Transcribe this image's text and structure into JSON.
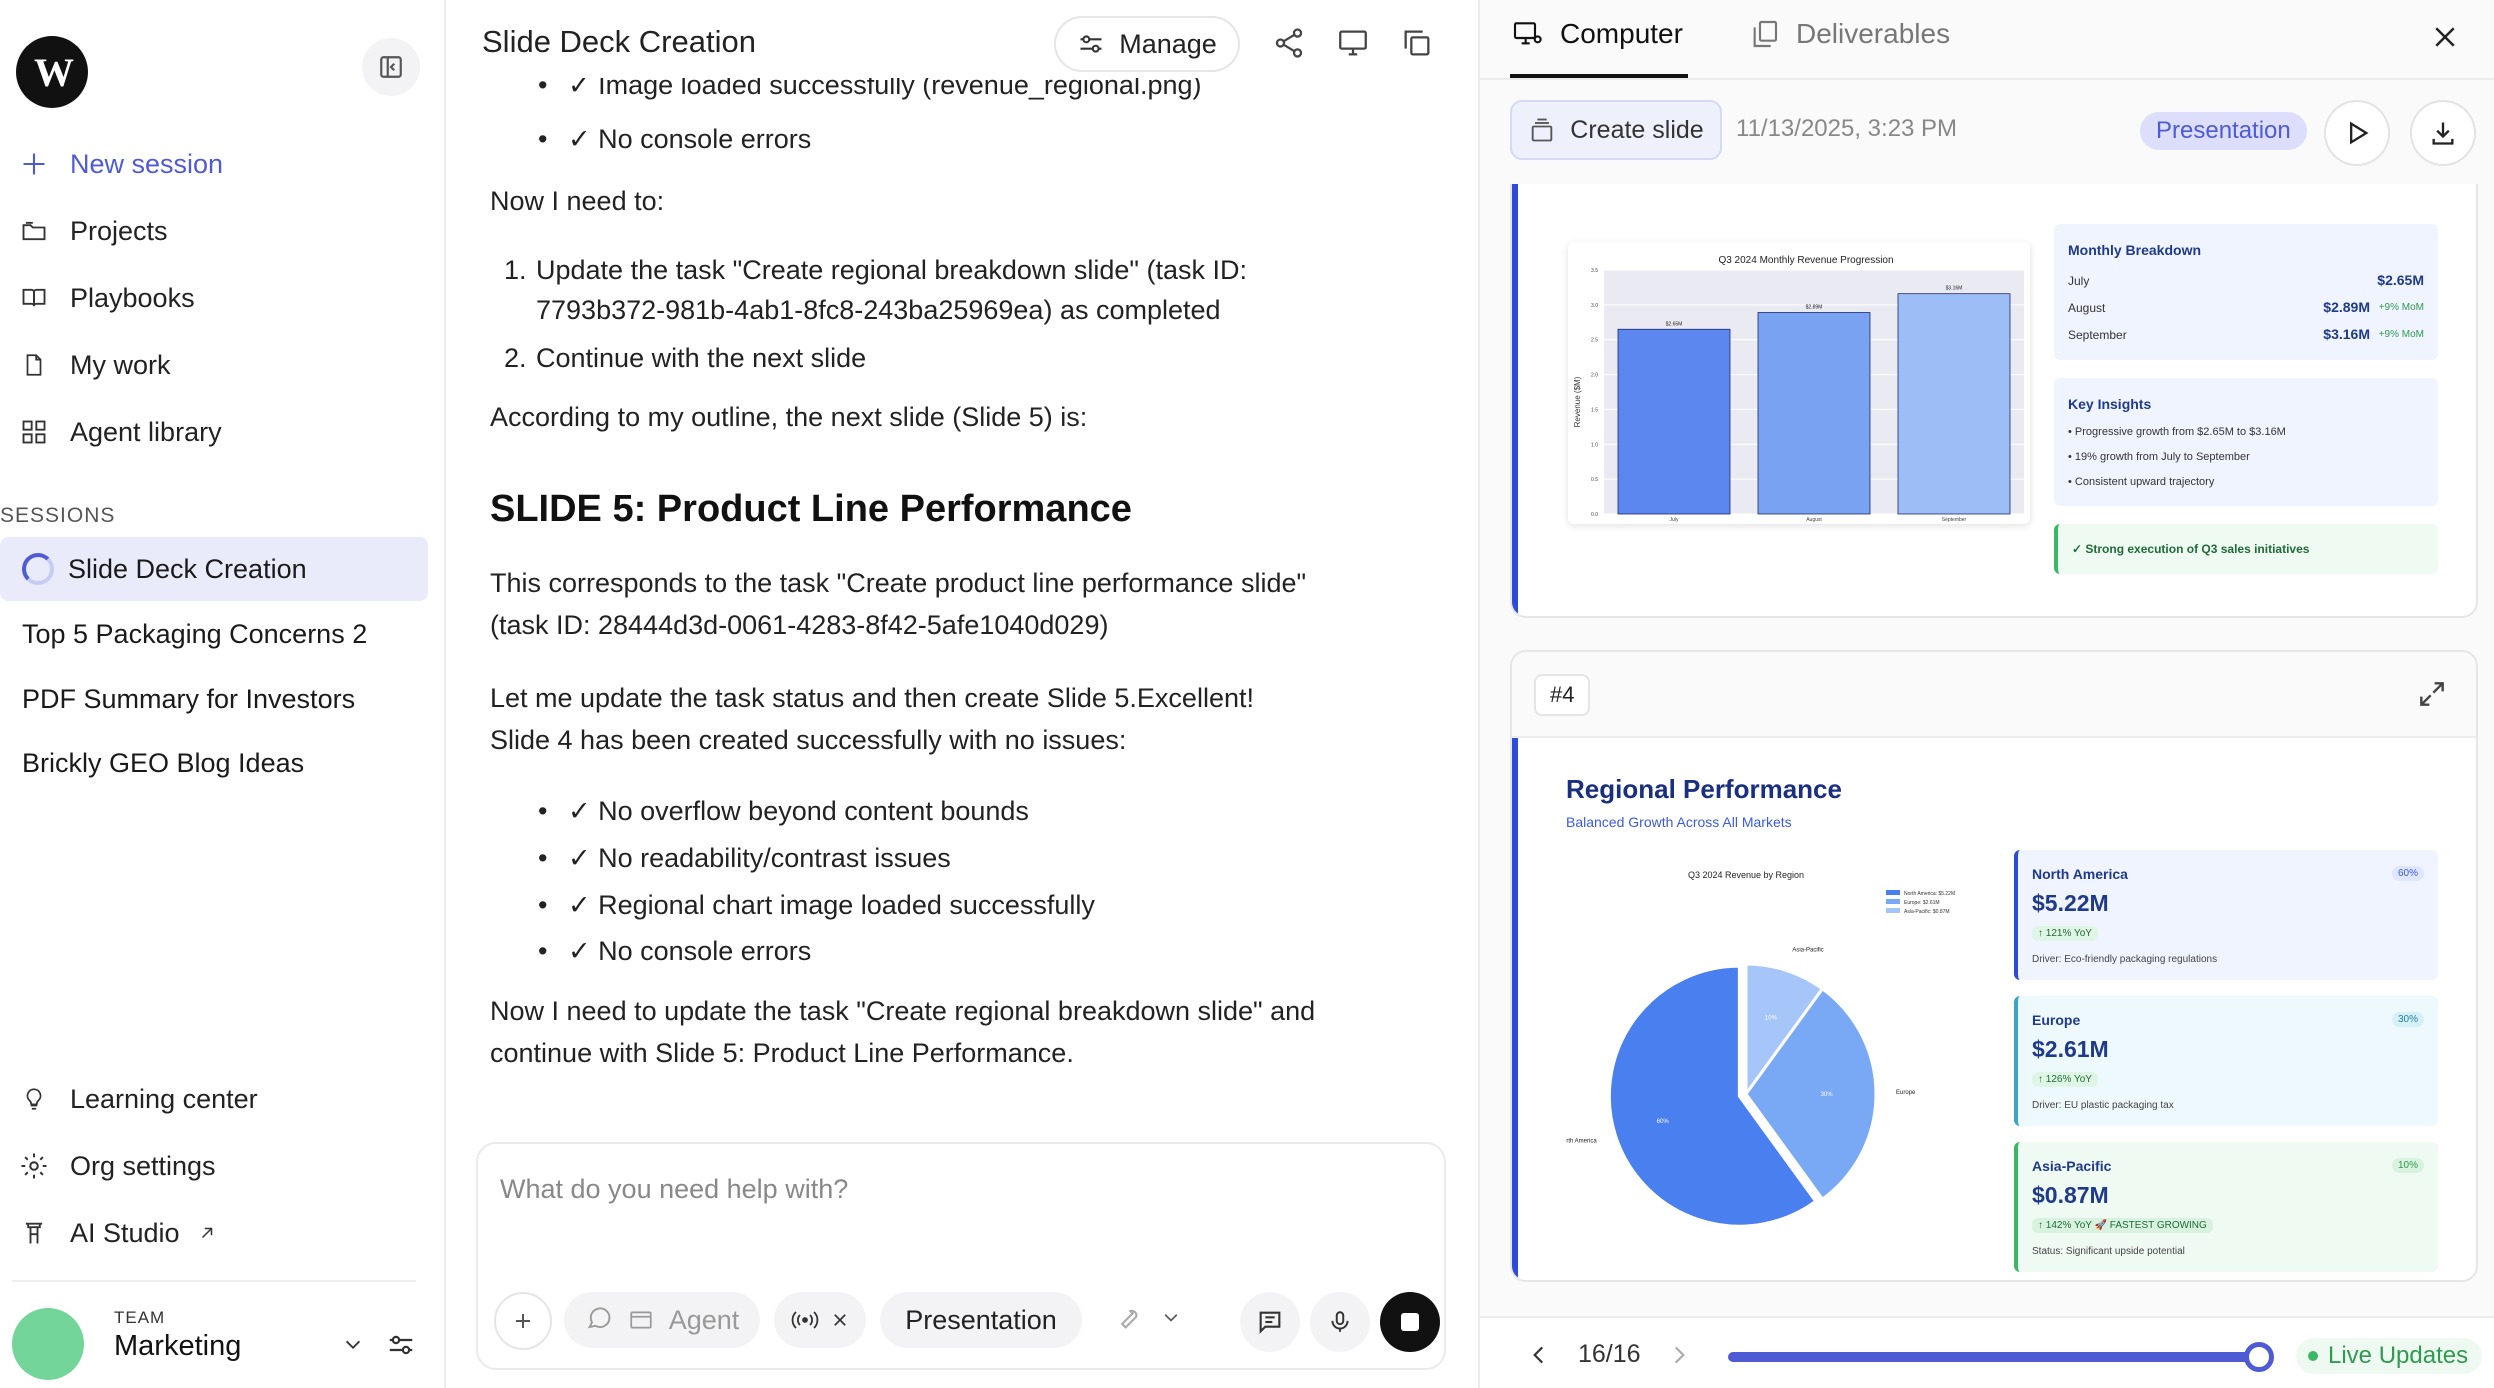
{
  "sidebar": {
    "logo_text": "W",
    "nav": [
      {
        "label": "New session",
        "icon": "plus-icon"
      },
      {
        "label": "Projects",
        "icon": "folder-icon"
      },
      {
        "label": "Playbooks",
        "icon": "book-icon"
      },
      {
        "label": "My work",
        "icon": "document-icon"
      },
      {
        "label": "Agent library",
        "icon": "grid-icon"
      }
    ],
    "sessions_header": "SESSIONS",
    "sessions": [
      "Slide Deck Creation",
      "Top 5 Packaging Concerns 2",
      "PDF Summary for Investors",
      "Brickly GEO Blog Ideas"
    ],
    "footer_nav": [
      {
        "label": "Learning center",
        "icon": "lightbulb-icon"
      },
      {
        "label": "Org settings",
        "icon": "gear-icon"
      },
      {
        "label": "AI Studio",
        "icon": "lab-icon"
      }
    ],
    "team_label": "TEAM",
    "team_name": "Marketing"
  },
  "chat": {
    "title": "Slide Deck Creation",
    "manage_label": "Manage",
    "bullets_top": [
      "✓ Image loaded successfully (revenue_regional.png)",
      "✓ No console errors"
    ],
    "p1": "Now I need to:",
    "ol1": "Update the task \"Create regional breakdown slide\" (task ID: 7793b372-981b-4ab1-8fc8-243ba25969ea) as completed",
    "ol2": "Continue with the next slide",
    "ol1_num": "1.",
    "ol2_num": "2.",
    "p2": "According to my outline, the next slide (Slide 5) is:",
    "h2": "SLIDE 5: Product Line Performance",
    "p3": "This corresponds to the task \"Create product line performance slide\" (task ID: 28444d3d-0061-4283-8f42-5afe1040d029)",
    "p4": "Let me update the task status and then create Slide 5.Excellent! Slide 4 has been created successfully with no issues:",
    "bullets_mid": [
      "✓ No overflow beyond content bounds",
      "✓ No readability/contrast issues",
      "✓ Regional chart image loaded successfully",
      "✓ No console errors"
    ],
    "p5": "Now I need to update the task \"Create regional breakdown slide\" and continue with Slide 5: Product Line Performance.",
    "composer_placeholder": "What do you need help with?",
    "agent_label": "Agent",
    "presentation_label": "Presentation"
  },
  "panel": {
    "tab_computer": "Computer",
    "tab_deliverables": "Deliverables",
    "create_slide": "Create slide",
    "timestamp": "11/13/2025, 3:23 PM",
    "badge": "Presentation",
    "slide_counter": "16/16",
    "live_label": "Live Updates",
    "progress": 1.0,
    "card3": {
      "chart_title": "Q3 2024 Monthly Revenue Progression",
      "ylabel": "Revenue ($M)",
      "yticks": [
        "0.0",
        "0.5",
        "1.0",
        "1.5",
        "2.0",
        "2.5",
        "3.0",
        "3.5"
      ],
      "monthly_title": "Monthly Breakdown",
      "rows": [
        {
          "m": "July",
          "v": "$2.65M",
          "c": ""
        },
        {
          "m": "August",
          "v": "$2.89M",
          "c": "+9% MoM"
        },
        {
          "m": "September",
          "v": "$3.16M",
          "c": "+9% MoM"
        }
      ],
      "insights_title": "Key Insights",
      "insights": [
        "Progressive growth from $2.65M to $3.16M",
        "19% growth from July to September",
        "Consistent upward trajectory"
      ],
      "banner": "✓ Strong execution of Q3 sales initiatives"
    },
    "card4": {
      "num": "#4",
      "title": "Regional Performance",
      "subtitle": "Balanced Growth Across All Markets",
      "chart_title": "Q3 2024 Revenue by Region",
      "regions": [
        {
          "name": "North America",
          "pct": "60%",
          "value": "$5.22M",
          "yoy": "↑ 121% YoY",
          "driver": "Driver: Eco-friendly packaging regulations",
          "legend": "North America: $5.22M"
        },
        {
          "name": "Europe",
          "pct": "30%",
          "value": "$2.61M",
          "yoy": "↑ 126% YoY",
          "driver": "Driver: EU plastic packaging tax",
          "legend": "Europe: $2.61M"
        },
        {
          "name": "Asia-Pacific",
          "pct": "10%",
          "value": "$0.87M",
          "yoy": "↑ 142% YoY 🚀 FASTEST GROWING",
          "driver": "Status: Significant upside potential",
          "legend": "Asia-Pacific: $0.87M"
        }
      ]
    }
  },
  "chart_data": [
    {
      "type": "bar",
      "title": "Q3 2024 Monthly Revenue Progression",
      "categories": [
        "July",
        "August",
        "September"
      ],
      "values": [
        2.65,
        2.89,
        3.16
      ],
      "data_labels": [
        "$2.65M",
        "$2.89M",
        "$3.16M"
      ],
      "ylabel": "Revenue ($M)",
      "ylim": [
        0,
        3.5
      ]
    },
    {
      "type": "pie",
      "title": "Q3 2024 Revenue by Region",
      "categories": [
        "North America",
        "Europe",
        "Asia-Pacific"
      ],
      "values": [
        60,
        30,
        10
      ],
      "data_labels": [
        "60%",
        "30%",
        "10%"
      ],
      "colors": [
        "#4a7ff0",
        "#79a8f5",
        "#a6c6fa"
      ],
      "legend": "top-right"
    }
  ]
}
